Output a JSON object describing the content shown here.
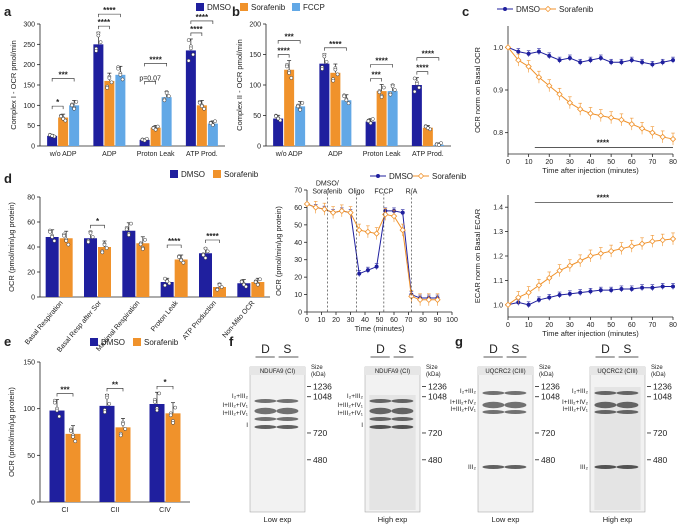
{
  "colors": {
    "dmso": "#1f1f9e",
    "sorafenib": "#f0922b",
    "fccp": "#62a8e6",
    "axis": "#222222",
    "blot_bg": "#f2f2f2",
    "band": "#1a1a1a"
  },
  "panels": {
    "a": "a",
    "b": "b",
    "c": "c",
    "d": "d",
    "e": "e",
    "f": "f",
    "g": "g"
  },
  "legend": {
    "dmso": "DMSO",
    "sorafenib": "Sorafenib",
    "fccp": "FCCP"
  },
  "chart_data": [
    {
      "id": "a",
      "type": "bar",
      "ylabel": "Complex I - OCR pmol/min",
      "ylim": [
        0,
        300
      ],
      "ticks": [
        "0",
        "50",
        "100",
        "150",
        "200",
        "250",
        "300"
      ],
      "categories": [
        "w/o ADP",
        "ADP",
        "Proton Leak",
        "ATP Prod."
      ],
      "series": [
        {
          "name": "DMSO",
          "values": [
            25,
            250,
            15,
            235
          ]
        },
        {
          "name": "Sorafenib",
          "values": [
            70,
            160,
            45,
            100
          ]
        },
        {
          "name": "FCCP",
          "values": [
            100,
            175,
            120,
            55
          ]
        }
      ],
      "annotations": [
        "*",
        "***",
        "****",
        "****",
        "p=0.07",
        "****",
        "****",
        "****"
      ]
    },
    {
      "id": "b",
      "type": "bar",
      "ylabel": "Complex II - OCR pmol/min",
      "ylim": [
        0,
        200
      ],
      "ticks": [
        "0",
        "50",
        "100",
        "150",
        "200"
      ],
      "categories": [
        "w/o ADP",
        "ADP",
        "Proton Leak",
        "ATP Prod."
      ],
      "series": [
        {
          "name": "DMSO",
          "values": [
            45,
            135,
            40,
            100
          ]
        },
        {
          "name": "Sorafenib",
          "values": [
            125,
            120,
            90,
            30
          ]
        },
        {
          "name": "FCCP",
          "values": [
            65,
            75,
            90,
            2
          ]
        }
      ],
      "annotations": [
        "****",
        "***",
        "****",
        "***",
        "****",
        "****",
        "****"
      ]
    },
    {
      "id": "c1",
      "type": "line",
      "ylabel": "OCR norm on Basal OCR",
      "xlabel": "Time after injection (minutes)",
      "x": [
        0,
        5,
        10,
        15,
        20,
        25,
        30,
        35,
        40,
        45,
        50,
        55,
        60,
        65,
        70,
        75,
        80
      ],
      "xticks": [
        "0",
        "10",
        "20",
        "30",
        "40",
        "50",
        "60",
        "70",
        "80"
      ],
      "yticks": [
        "0.8",
        "0.9",
        "1.0"
      ],
      "ylim": [
        0.75,
        1.05
      ],
      "series": [
        {
          "name": "DMSO",
          "values": [
            1.0,
            0.99,
            0.985,
            0.99,
            0.98,
            0.97,
            0.975,
            0.965,
            0.97,
            0.975,
            0.965,
            0.965,
            0.97,
            0.965,
            0.96,
            0.965,
            0.97
          ]
        },
        {
          "name": "Sorafenib",
          "values": [
            1.0,
            0.97,
            0.955,
            0.93,
            0.91,
            0.89,
            0.87,
            0.855,
            0.845,
            0.84,
            0.835,
            0.83,
            0.82,
            0.81,
            0.8,
            0.79,
            0.785
          ]
        }
      ],
      "annotation": "****"
    },
    {
      "id": "c2",
      "type": "line",
      "ylabel": "ECAR norm on Basal ECAR",
      "xlabel": "Time after injection (minutes)",
      "x": [
        0,
        5,
        10,
        15,
        20,
        25,
        30,
        35,
        40,
        45,
        50,
        55,
        60,
        65,
        70,
        75,
        80
      ],
      "xticks": [
        "0",
        "10",
        "20",
        "30",
        "40",
        "50",
        "60",
        "70",
        "80"
      ],
      "yticks": [
        "1.0",
        "1.1",
        "1.2",
        "1.3",
        "1.4"
      ],
      "ylim": [
        0.95,
        1.45
      ],
      "series": [
        {
          "name": "DMSO",
          "values": [
            1.0,
            1.01,
            1.0,
            1.02,
            1.03,
            1.04,
            1.045,
            1.05,
            1.055,
            1.06,
            1.06,
            1.065,
            1.065,
            1.07,
            1.07,
            1.075,
            1.075
          ]
        },
        {
          "name": "Sorafenib",
          "values": [
            1.0,
            1.03,
            1.05,
            1.08,
            1.11,
            1.14,
            1.16,
            1.18,
            1.2,
            1.21,
            1.22,
            1.23,
            1.24,
            1.25,
            1.26,
            1.265,
            1.27
          ]
        }
      ],
      "annotation": "****"
    },
    {
      "id": "d1",
      "type": "bar",
      "ylabel": "OCR (pmol/min/μg protein)",
      "ylim": [
        0,
        80
      ],
      "ticks": [
        "0",
        "20",
        "40",
        "60",
        "80"
      ],
      "categories": [
        "Basal Respiration",
        "Basal Resp after Sor",
        "Maximal Respiration",
        "Proton Leak",
        "ATP Production",
        "Non-Mito OCR"
      ],
      "series": [
        {
          "name": "DMSO",
          "values": [
            48,
            47,
            53,
            12,
            35,
            11
          ]
        },
        {
          "name": "Sorafenib",
          "values": [
            47,
            40,
            43,
            30,
            8,
            12
          ]
        }
      ],
      "annotations": [
        "*",
        "****",
        "****"
      ]
    },
    {
      "id": "d2",
      "type": "line",
      "ylabel": "OCR (pmol/min/μg protein)",
      "xlabel": "Time (minutes)",
      "x": [
        0,
        6,
        12,
        18,
        24,
        30,
        36,
        42,
        48,
        54,
        60,
        66,
        72,
        78,
        84,
        90
      ],
      "xticks": [
        "0",
        "10",
        "20",
        "30",
        "40",
        "50",
        "60",
        "70",
        "80",
        "90",
        "100"
      ],
      "yticks": [
        "0",
        "10",
        "20",
        "30",
        "40",
        "50",
        "60",
        "70"
      ],
      "ylim": [
        0,
        70
      ],
      "injections": [
        "DMSO/\nSorafenib",
        "Oligo",
        "FCCP",
        "R/A"
      ],
      "series": [
        {
          "name": "DMSO",
          "values": [
            62,
            60,
            59,
            57,
            58,
            57,
            22,
            24,
            26,
            58,
            58,
            57,
            10,
            8,
            8,
            8
          ]
        },
        {
          "name": "Sorafenib",
          "values": [
            62,
            60,
            59,
            57,
            58,
            57,
            47,
            46,
            45,
            56,
            55,
            47,
            9,
            7,
            7,
            7
          ]
        }
      ]
    },
    {
      "id": "e",
      "type": "bar",
      "ylabel": "OCR (pmol/min/μg protein)",
      "ylim": [
        0,
        150
      ],
      "ticks": [
        "0",
        "50",
        "100",
        "150"
      ],
      "categories": [
        "CI",
        "CII",
        "CIV"
      ],
      "series": [
        {
          "name": "DMSO",
          "values": [
            98,
            103,
            105
          ]
        },
        {
          "name": "Sorafenib",
          "values": [
            73,
            80,
            95
          ]
        }
      ],
      "annotations": [
        "***",
        "**",
        "*"
      ]
    }
  ],
  "blots": {
    "f": {
      "lanes": [
        "D",
        "S"
      ],
      "antibody": "NDUFA9 (CI)",
      "size_label": "Size\n(kDa)",
      "markers": [
        "1236",
        "1048",
        "720",
        "480"
      ],
      "bands": [
        "I₂+III₂",
        "I+III₂+IV₁",
        "I+III₂+IV₁",
        "I"
      ],
      "exposures": [
        "Low exp",
        "High exp"
      ]
    },
    "g": {
      "lanes": [
        "D",
        "S"
      ],
      "antibody": "UQCRC2 (CIII)",
      "size_label": "Size\n(kDa)",
      "markers": [
        "1236",
        "1048",
        "720",
        "480"
      ],
      "bands": [
        "I₂+III₂",
        "I+III₂+IV₂",
        "I+III₂+IV₁",
        "III₂"
      ],
      "exposures": [
        "Low exp",
        "High exp"
      ]
    }
  }
}
